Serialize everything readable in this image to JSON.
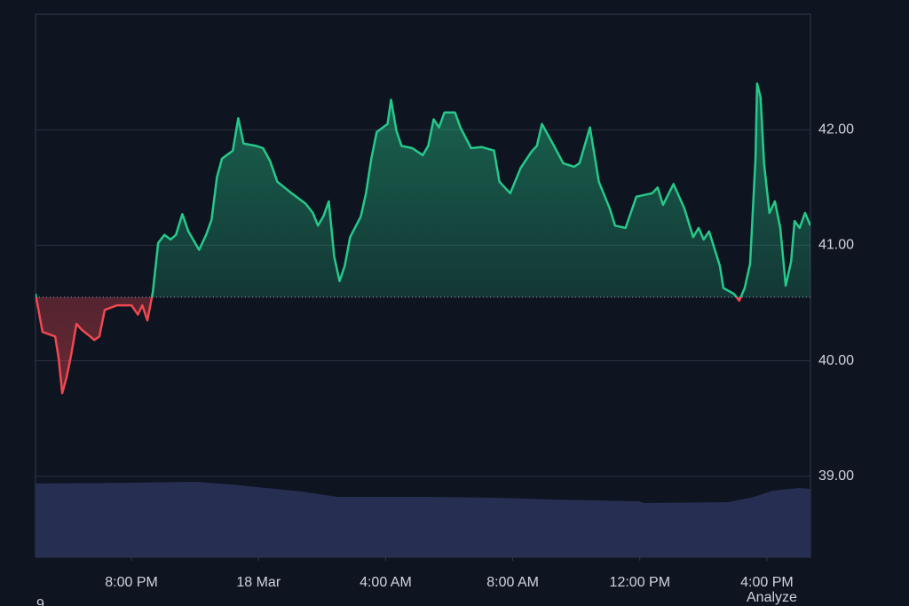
{
  "chart_data": {
    "type": "baseline",
    "x": [
      16.98,
      17.2,
      17.6,
      17.71,
      17.82,
      17.96,
      18.1,
      18.27,
      18.43,
      18.66,
      18.83,
      18.99,
      19.16,
      19.55,
      20.0,
      20.2,
      20.34,
      20.5,
      20.67,
      20.84,
      21.04,
      21.23,
      21.4,
      21.6,
      21.79,
      22.13,
      22.35,
      22.52,
      22.69,
      22.85,
      23.19,
      23.36,
      23.53,
      23.92,
      24.14,
      24.36,
      24.59,
      25.04,
      25.48,
      25.71,
      25.87,
      26.04,
      26.21,
      26.38,
      26.55,
      26.71,
      26.88,
      27.22,
      27.38,
      27.55,
      27.72,
      28.06,
      28.17,
      28.34,
      28.5,
      28.84,
      29.17,
      29.34,
      29.51,
      29.68,
      29.85,
      30.18,
      30.35,
      30.69,
      31.02,
      31.41,
      31.58,
      31.92,
      32.25,
      32.59,
      32.76,
      32.92,
      33.26,
      33.59,
      33.93,
      34.1,
      34.43,
      34.71,
      35.05,
      35.22,
      35.55,
      35.89,
      36.39,
      36.56,
      36.73,
      37.06,
      37.4,
      37.68,
      37.85,
      38.01,
      38.18,
      38.52,
      38.63,
      38.96,
      39.13,
      39.3,
      39.47,
      39.64,
      39.69,
      39.8,
      39.91,
      40.08,
      40.25,
      40.42,
      40.59,
      40.76,
      40.87,
      41.03,
      41.2,
      41.37
    ],
    "values": [
      40.58,
      40.25,
      40.21,
      40.02,
      39.72,
      39.86,
      40.05,
      40.32,
      40.27,
      40.22,
      40.18,
      40.21,
      40.44,
      40.48,
      40.48,
      40.4,
      40.48,
      40.35,
      40.59,
      41.02,
      41.09,
      41.05,
      41.09,
      41.27,
      41.12,
      40.96,
      41.09,
      41.22,
      41.59,
      41.75,
      41.82,
      42.1,
      41.88,
      41.86,
      41.84,
      41.73,
      41.55,
      41.45,
      41.36,
      41.28,
      41.17,
      41.25,
      41.38,
      40.9,
      40.69,
      40.82,
      41.07,
      41.25,
      41.45,
      41.75,
      41.98,
      42.05,
      42.26,
      41.99,
      41.86,
      41.84,
      41.78,
      41.86,
      42.09,
      42.02,
      42.15,
      42.15,
      42.02,
      41.84,
      41.85,
      41.82,
      41.55,
      41.45,
      41.67,
      41.81,
      41.86,
      42.05,
      41.88,
      41.71,
      41.68,
      41.71,
      42.02,
      41.55,
      41.32,
      41.17,
      41.15,
      41.42,
      41.45,
      41.5,
      41.35,
      41.53,
      41.32,
      41.07,
      41.15,
      41.05,
      41.12,
      40.82,
      40.63,
      40.58,
      40.52,
      40.63,
      40.84,
      41.75,
      42.4,
      42.28,
      41.71,
      41.28,
      41.38,
      41.15,
      40.65,
      40.86,
      41.21,
      41.15,
      41.28,
      41.17
    ],
    "baseline": 40.55,
    "color_up": "#26c98a",
    "color_down": "#ef4850",
    "xlim": [
      16.98,
      41.37
    ],
    "xticks": [
      {
        "value": 20,
        "label": "8:00 PM"
      },
      {
        "value": 24,
        "label": "18 Mar"
      },
      {
        "value": 28,
        "label": "4:00 AM"
      },
      {
        "value": 32,
        "label": "8:00 AM"
      },
      {
        "value": 36,
        "label": "12:00 PM"
      },
      {
        "value": 40,
        "label": "4:00 PM"
      }
    ],
    "ylim": [
      38.3,
      43.0
    ],
    "yticks": [
      {
        "value": 39,
        "label": "39.00"
      },
      {
        "value": 40,
        "label": "40.00"
      },
      {
        "value": 41,
        "label": "41.00"
      },
      {
        "value": 42,
        "label": "42.00"
      }
    ],
    "grid": true
  },
  "footer": {
    "left_text": "9",
    "right_text": "Analyze"
  }
}
